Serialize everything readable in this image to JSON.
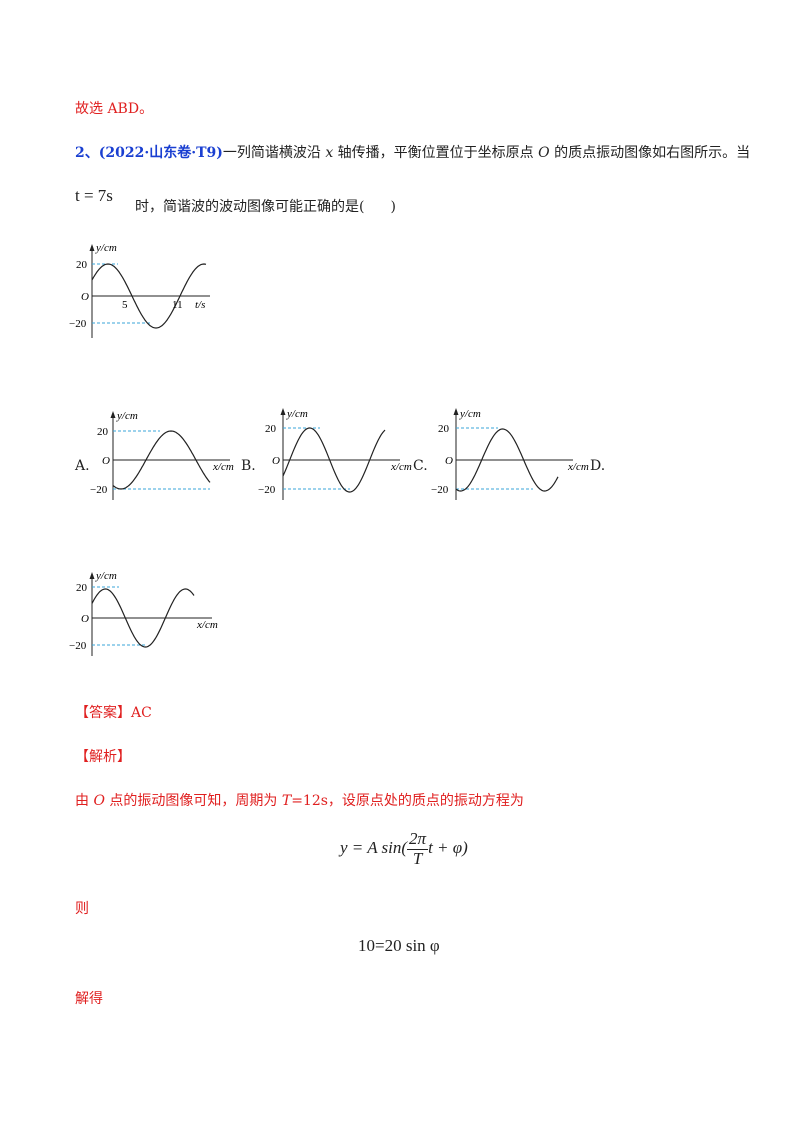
{
  "prev_conclusion": "故选 ABD。",
  "question": {
    "number": "2、",
    "source": "(2022·山东卷·T9)",
    "text_part1": "一列简谐横波沿 ",
    "var_x": "x",
    "text_part2": " 轴传播，平衡位置位于坐标原点 ",
    "var_O": "O",
    "text_part3": " 的质点振动图像如右图所示。当",
    "time_expr": "t = 7s",
    "text_part4": "时，简谐波的波动图像可能正确的是(",
    "blank_close": ")"
  },
  "figures": {
    "given": {
      "ylabel": "y/cm",
      "xlabel": "t/s",
      "origin": "O",
      "tick_top": "20",
      "tick_bottom": "−20",
      "tick_5": "5",
      "tick_11": "11"
    },
    "options": [
      {
        "letter": "A.",
        "ylabel": "y/cm",
        "xlabel": "x/cm",
        "origin": "O",
        "tick_top": "20",
        "tick_bottom": "−20"
      },
      {
        "letter": "B.",
        "ylabel": "y/cm",
        "xlabel": "x/cm",
        "origin": "O",
        "tick_top": "20",
        "tick_bottom": "−20"
      },
      {
        "letter": "C.",
        "ylabel": "y/cm",
        "xlabel": "x/cm",
        "origin": "O",
        "tick_top": "20",
        "tick_bottom": "−20"
      },
      {
        "letter": "D.",
        "ylabel": "y/cm",
        "xlabel": "x/cm",
        "origin": "O",
        "tick_top": "20",
        "tick_bottom": "−20"
      }
    ]
  },
  "answer": {
    "label": "【答案】",
    "value": "AC"
  },
  "analysis": {
    "label": "【解析】",
    "line1_a": "由 ",
    "line1_O": "O",
    "line1_b": " 点的振动图像可知，周期为 ",
    "line1_T": "T",
    "line1_c": "=12s，设原点处的质点的振动方程为",
    "eq1": {
      "lhs": "y = A sin(",
      "num": "2π",
      "den": "T",
      "rhs": "t + φ)"
    },
    "then": "则",
    "eq2": "10=20 sin φ",
    "solve": "解得"
  },
  "colors": {
    "accent_red": "#e02020",
    "accent_blue": "#1a3fd1",
    "dashed_cyan": "#3aa6d8"
  }
}
